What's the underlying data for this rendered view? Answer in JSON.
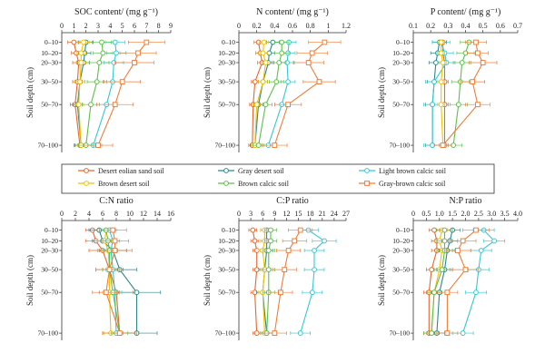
{
  "figure": {
    "y_axis_label": "Soil depth (cm)",
    "legend": [
      {
        "label": "Desert eolian sand soil",
        "color": "#e8662b",
        "marker": "circle"
      },
      {
        "label": "Gray desert soil",
        "color": "#2a8a8a",
        "marker": "circle"
      },
      {
        "label": "Light brown calcic soil",
        "color": "#33c9d4",
        "marker": "circle"
      },
      {
        "label": "Brown desert soil",
        "color": "#f2c200",
        "marker": "circle"
      },
      {
        "label": "Brown calcic soil",
        "color": "#5cc04a",
        "marker": "circle"
      },
      {
        "label": "Gray-brown calcic soil",
        "color": "#ee7e3a",
        "marker": "square"
      }
    ]
  },
  "chart_data": [
    {
      "type": "line",
      "title": "SOC content/ (mg g⁻¹)",
      "xlim": [
        0,
        9
      ],
      "xticks": [
        "0",
        "1",
        "2",
        "3",
        "4",
        "5",
        "6",
        "7",
        "8",
        "9"
      ],
      "depth_labels": [
        "0–10",
        "10–20",
        "20–30",
        "30–50",
        "50–70",
        "70–100"
      ],
      "series": [
        {
          "name": "Desert eolian sand soil",
          "values": [
            1.0,
            1.2,
            1.4,
            1.3,
            1.1,
            1.5
          ],
          "err": [
            0.5,
            0.4,
            0.5,
            0.4,
            0.4,
            0.5
          ]
        },
        {
          "name": "Gray desert soil",
          "values": [
            2.0,
            1.9,
            1.8,
            1.5,
            1.3,
            1.6
          ],
          "err": [
            0.6,
            0.5,
            0.5,
            0.4,
            0.4,
            0.5
          ]
        },
        {
          "name": "Light brown calcic soil",
          "values": [
            4.4,
            4.5,
            4.3,
            4.2,
            3.7,
            2.6
          ],
          "err": [
            0.8,
            0.8,
            0.8,
            0.8,
            0.8,
            0.7
          ]
        },
        {
          "name": "Brown desert soil",
          "values": [
            1.8,
            1.6,
            1.6,
            1.5,
            1.4,
            1.6
          ],
          "err": [
            0.5,
            0.4,
            0.4,
            0.4,
            0.4,
            0.4
          ]
        },
        {
          "name": "Brown calcic soil",
          "values": [
            3.3,
            3.4,
            3.1,
            2.9,
            2.4,
            2.0
          ],
          "err": [
            0.8,
            0.8,
            0.8,
            0.8,
            0.7,
            0.6
          ]
        },
        {
          "name": "Gray-brown calcic soil",
          "values": [
            7.0,
            6.3,
            6.0,
            5.0,
            4.4,
            3.0
          ],
          "err": [
            1.5,
            1.5,
            1.6,
            1.5,
            1.5,
            1.2
          ]
        }
      ]
    },
    {
      "type": "line",
      "title": "N content/ (mg g⁻¹)",
      "xlim": [
        0,
        1.2
      ],
      "xticks": [
        "0",
        "0.2",
        "0.4",
        "0.6",
        "0.8",
        "1",
        "1.2"
      ],
      "depth_labels": [
        "0–10",
        "10–20",
        "20–30",
        "30–50",
        "50–70",
        "70–100"
      ],
      "series": [
        {
          "name": "Desert eolian sand soil",
          "values": [
            0.22,
            0.24,
            0.26,
            0.18,
            0.16,
            0.15
          ],
          "err": [
            0.05,
            0.05,
            0.05,
            0.04,
            0.04,
            0.04
          ]
        },
        {
          "name": "Gray desert soil",
          "values": [
            0.38,
            0.34,
            0.33,
            0.27,
            0.22,
            0.18
          ],
          "err": [
            0.07,
            0.06,
            0.06,
            0.05,
            0.05,
            0.05
          ]
        },
        {
          "name": "Light brown calcic soil",
          "values": [
            0.56,
            0.55,
            0.54,
            0.55,
            0.48,
            0.33
          ],
          "err": [
            0.08,
            0.08,
            0.08,
            0.08,
            0.08,
            0.07
          ]
        },
        {
          "name": "Brown desert soil",
          "values": [
            0.28,
            0.27,
            0.3,
            0.27,
            0.2,
            0.18
          ],
          "err": [
            0.05,
            0.05,
            0.05,
            0.05,
            0.04,
            0.04
          ]
        },
        {
          "name": "Brown calcic soil",
          "values": [
            0.48,
            0.48,
            0.45,
            0.42,
            0.3,
            0.22
          ],
          "err": [
            0.08,
            0.08,
            0.08,
            0.08,
            0.07,
            0.06
          ]
        },
        {
          "name": "Gray-brown calcic soil",
          "values": [
            0.96,
            0.82,
            0.78,
            0.9,
            0.55,
            0.4
          ],
          "err": [
            0.18,
            0.17,
            0.17,
            0.18,
            0.15,
            0.14
          ]
        }
      ]
    },
    {
      "type": "line",
      "title": "P content/ (mg g⁻¹)",
      "xlim": [
        0.1,
        0.7
      ],
      "xticks": [
        "0.1",
        "0.2",
        "0.3",
        "0.4",
        "0.5",
        "0.6",
        "0.7"
      ],
      "depth_labels": [
        "0–10",
        "10–20",
        "20–30",
        "30–50",
        "50–70",
        "70–100"
      ],
      "series": [
        {
          "name": "Desert eolian sand soil",
          "values": [
            0.27,
            0.27,
            0.28,
            0.28,
            0.28,
            0.28
          ],
          "err": [
            0.02,
            0.02,
            0.02,
            0.02,
            0.02,
            0.02
          ]
        },
        {
          "name": "Gray desert soil",
          "values": [
            0.25,
            0.24,
            0.23,
            0.22,
            0.21,
            0.21
          ],
          "err": [
            0.04,
            0.04,
            0.04,
            0.04,
            0.04,
            0.04
          ]
        },
        {
          "name": "Light brown calcic soil",
          "values": [
            0.26,
            0.28,
            0.29,
            0.22,
            0.21,
            0.21
          ],
          "err": [
            0.05,
            0.05,
            0.05,
            0.05,
            0.05,
            0.05
          ]
        },
        {
          "name": "Brown desert soil",
          "values": [
            0.26,
            0.26,
            0.27,
            0.26,
            0.26,
            0.27
          ],
          "err": [
            0.02,
            0.02,
            0.02,
            0.02,
            0.02,
            0.02
          ]
        },
        {
          "name": "Brown calcic soil",
          "values": [
            0.42,
            0.4,
            0.38,
            0.37,
            0.36,
            0.33
          ],
          "err": [
            0.05,
            0.05,
            0.05,
            0.05,
            0.05,
            0.05
          ]
        },
        {
          "name": "Gray-brown calcic soil",
          "values": [
            0.46,
            0.47,
            0.5,
            0.44,
            0.47,
            0.27
          ],
          "err": [
            0.06,
            0.06,
            0.08,
            0.07,
            0.07,
            0.05
          ]
        }
      ]
    },
    {
      "type": "line",
      "title": "C:N ratio",
      "xlim": [
        0,
        16
      ],
      "xticks": [
        "0",
        "2",
        "4",
        "6",
        "8",
        "10",
        "12",
        "14",
        "16"
      ],
      "depth_labels": [
        "0–10",
        "10–20",
        "20–30",
        "30–50",
        "50–70",
        "70–100"
      ],
      "series": [
        {
          "name": "Desert eolian sand soil",
          "values": [
            4.5,
            5.0,
            6.0,
            7.0,
            8.0,
            8.5
          ],
          "err": [
            1.0,
            1.5,
            2.0,
            2.0,
            2.5,
            2.5
          ]
        },
        {
          "name": "Gray desert soil",
          "values": [
            5.5,
            6.0,
            7.5,
            8.5,
            11.0,
            11.0
          ],
          "err": [
            1.5,
            1.5,
            2.0,
            2.5,
            3.5,
            3.0
          ]
        },
        {
          "name": "Light brown calcic soil",
          "values": [
            7.0,
            7.5,
            7.2,
            7.5,
            7.8,
            8.0
          ],
          "err": [
            1.0,
            1.0,
            1.0,
            1.0,
            1.0,
            1.0
          ]
        },
        {
          "name": "Brown desert soil",
          "values": [
            6.5,
            6.3,
            6.8,
            7.0,
            7.0,
            7.2
          ],
          "err": [
            1.0,
            1.0,
            1.0,
            1.0,
            1.0,
            1.0
          ]
        },
        {
          "name": "Brown calcic soil",
          "values": [
            6.5,
            6.8,
            7.0,
            7.0,
            7.5,
            8.5
          ],
          "err": [
            1.0,
            1.0,
            1.0,
            1.0,
            1.0,
            1.2
          ]
        },
        {
          "name": "Gray-brown calcic soil",
          "values": [
            7.5,
            7.8,
            7.8,
            7.0,
            6.5,
            8.5
          ],
          "err": [
            2.0,
            2.0,
            2.5,
            2.0,
            2.0,
            2.5
          ]
        }
      ]
    },
    {
      "type": "line",
      "title": "C:P ratio",
      "xlim": [
        0,
        27
      ],
      "xticks": [
        "0",
        "3",
        "6",
        "9",
        "12",
        "15",
        "18",
        "21",
        "24",
        "27"
      ],
      "depth_labels": [
        "0–10",
        "10–20",
        "20–30",
        "30–50",
        "50–70",
        "70–100"
      ],
      "series": [
        {
          "name": "Desert eolian sand soil",
          "values": [
            3.5,
            4.0,
            4.5,
            4.5,
            4.0,
            4.5
          ],
          "err": [
            1.0,
            1.0,
            1.0,
            1.0,
            1.0,
            1.0
          ]
        },
        {
          "name": "Gray desert soil",
          "values": [
            7.0,
            7.0,
            7.0,
            6.5,
            6.0,
            7.0
          ],
          "err": [
            1.5,
            1.5,
            1.5,
            1.5,
            1.5,
            1.5
          ]
        },
        {
          "name": "Light brown calcic soil",
          "values": [
            17.5,
            21.5,
            19.0,
            19.0,
            18.5,
            15.5
          ],
          "err": [
            2.5,
            3.0,
            2.5,
            2.5,
            2.5,
            2.5
          ]
        },
        {
          "name": "Brown desert soil",
          "values": [
            6.5,
            6.5,
            6.0,
            6.5,
            6.0,
            6.5
          ],
          "err": [
            1.0,
            1.0,
            1.0,
            1.0,
            1.0,
            1.0
          ]
        },
        {
          "name": "Brown calcic soil",
          "values": [
            8.0,
            8.0,
            7.5,
            7.5,
            7.5,
            7.0
          ],
          "err": [
            1.5,
            1.5,
            1.5,
            1.5,
            1.5,
            1.5
          ]
        },
        {
          "name": "Gray-brown calcic soil",
          "values": [
            15.5,
            14.0,
            12.5,
            11.5,
            10.5,
            9.0
          ],
          "err": [
            3.0,
            3.0,
            3.0,
            3.0,
            3.0,
            3.0
          ]
        }
      ]
    },
    {
      "type": "line",
      "title": "N:P ratio",
      "xlim": [
        0,
        4.0
      ],
      "xticks": [
        "0",
        "0.5",
        "1.0",
        "1.5",
        "2.0",
        "2.5",
        "3.0",
        "3.5",
        "4.0"
      ],
      "depth_labels": [
        "0–10",
        "10–20",
        "20–30",
        "30–50",
        "50–70",
        "70–100"
      ],
      "series": [
        {
          "name": "Desert eolian sand soil",
          "values": [
            0.8,
            0.9,
            0.9,
            0.7,
            0.6,
            0.6
          ],
          "err": [
            0.2,
            0.2,
            0.2,
            0.2,
            0.2,
            0.2
          ]
        },
        {
          "name": "Gray desert soil",
          "values": [
            1.5,
            1.4,
            1.3,
            1.2,
            1.0,
            0.9
          ],
          "err": [
            0.3,
            0.3,
            0.3,
            0.3,
            0.3,
            0.3
          ]
        },
        {
          "name": "Light brown calcic soil",
          "values": [
            2.7,
            3.1,
            2.6,
            2.5,
            2.4,
            1.9
          ],
          "err": [
            0.4,
            0.4,
            0.4,
            0.4,
            0.4,
            0.4
          ]
        },
        {
          "name": "Brown desert soil",
          "values": [
            1.1,
            1.0,
            1.1,
            1.0,
            0.8,
            0.7
          ],
          "err": [
            0.2,
            0.2,
            0.2,
            0.2,
            0.2,
            0.2
          ]
        },
        {
          "name": "Brown calcic soil",
          "values": [
            1.2,
            1.2,
            1.2,
            1.1,
            0.8,
            0.7
          ],
          "err": [
            0.3,
            0.3,
            0.3,
            0.3,
            0.3,
            0.3
          ]
        },
        {
          "name": "Gray-brown calcic soil",
          "values": [
            2.4,
            1.9,
            1.7,
            2.0,
            1.3,
            1.3
          ],
          "err": [
            0.5,
            0.5,
            0.5,
            0.5,
            0.4,
            0.4
          ]
        }
      ]
    }
  ]
}
